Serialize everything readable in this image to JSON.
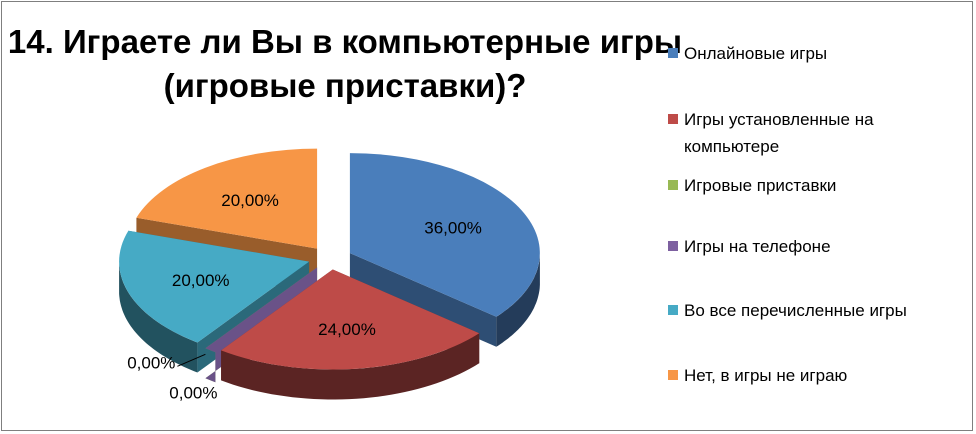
{
  "chart_data": {
    "type": "pie",
    "title_lines": [
      "14. Играете ли Вы в компьютерные игры",
      "(игровые приставки)?"
    ],
    "categories": [
      "Онлайновые игры",
      "Игры установленные на компьютере",
      "Игровые приставки",
      "Игры на телефоне",
      "Во все перечисленные игры",
      "Нет, в игры не играю"
    ],
    "legend_lines": [
      [
        "Онлайновые игры"
      ],
      [
        "Игры установленные на",
        "компьютере"
      ],
      [
        "Игровые приставки"
      ],
      [
        "Игры на телефоне"
      ],
      [
        "Во все перечисленные игры"
      ],
      [
        "Нет, в игры не играю"
      ]
    ],
    "values": [
      36,
      24,
      0,
      0,
      20,
      20
    ],
    "labels": [
      "36,00%",
      "24,00%",
      "0,00%",
      "0,00%",
      "20,00%",
      "20,00%"
    ],
    "colors": [
      "#4a7ebb",
      "#be4b48",
      "#98b954",
      "#7d60a0",
      "#46aac5",
      "#f79646"
    ],
    "exploded": true,
    "style": "3d",
    "legend_position": "right"
  }
}
